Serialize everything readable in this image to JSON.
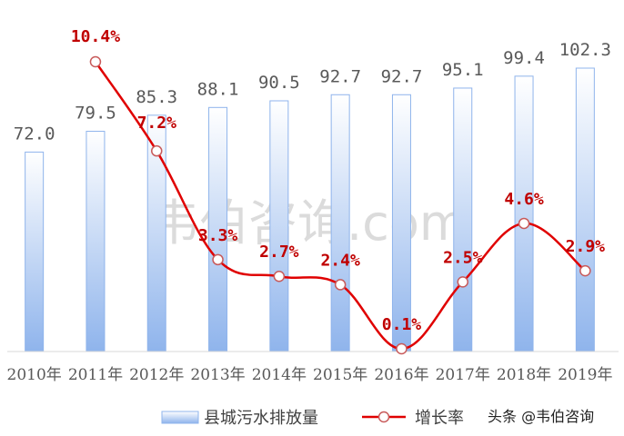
{
  "chart_data": {
    "type": "bar",
    "title": "",
    "xlabel": "",
    "ylabel": "",
    "categories": [
      "2010年",
      "2011年",
      "2012年",
      "2013年",
      "2014年",
      "2015年",
      "2016年",
      "2017年",
      "2018年",
      "2019年"
    ],
    "series": [
      {
        "name": "县城污水排放量",
        "type": "bar",
        "values": [
          72.0,
          79.5,
          85.3,
          88.1,
          90.5,
          92.7,
          92.7,
          95.1,
          99.4,
          102.3
        ],
        "labels": [
          "72.0",
          "79.5",
          "85.3",
          "88.1",
          "90.5",
          "92.7",
          "92.7",
          "95.1",
          "99.4",
          "102.3"
        ],
        "color": "#8fb4ec"
      },
      {
        "name": "增长率",
        "type": "line",
        "values": [
          null,
          10.4,
          7.2,
          3.3,
          2.7,
          2.4,
          0.1,
          2.5,
          4.6,
          2.9
        ],
        "labels": [
          "",
          "10.4%",
          "7.2%",
          "3.3%",
          "2.7%",
          "2.4%",
          "0.1%",
          "2.5%",
          "4.6%",
          "2.9%"
        ],
        "color": "#e00000"
      }
    ],
    "ylim_bar": [
      0,
      110
    ],
    "ylim_line": [
      0,
      12
    ],
    "grid": false,
    "legend": "bottom-center"
  },
  "watermark": "韦伯咨询.com",
  "credit": "头条 @韦伯咨询"
}
